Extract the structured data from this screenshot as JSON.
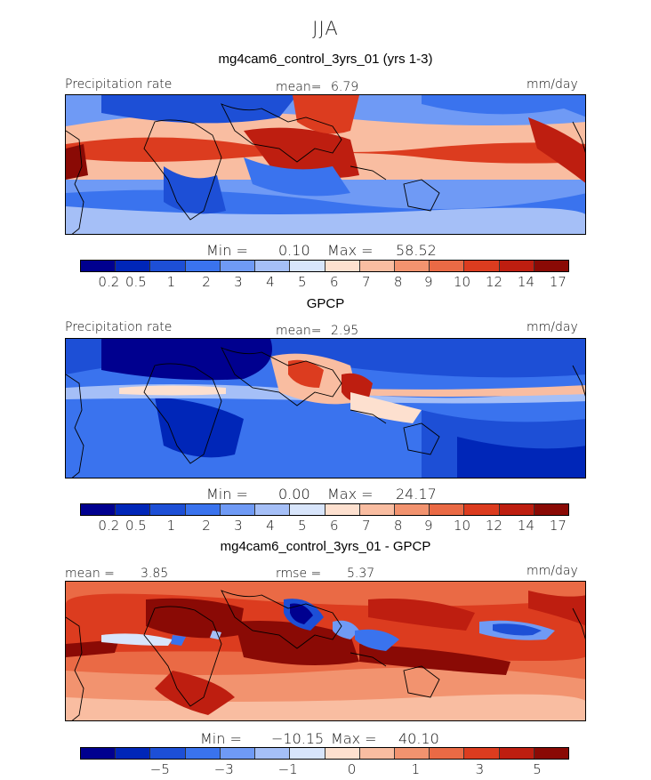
{
  "season": "JJA",
  "palette_abs": [
    "#00008f",
    "#0026b8",
    "#1d4fd6",
    "#3a73ee",
    "#6f9af5",
    "#a5bff7",
    "#d8e5fb",
    "#fde0cf",
    "#f9bda1",
    "#f2936f",
    "#ea6a45",
    "#dc3c1f",
    "#be1e10",
    "#8a0a05"
  ],
  "panels": [
    {
      "title": "mg4cam6_control_3yrs_01 (yrs 1-3)",
      "left_label": "Precipitation rate",
      "mean_label": "mean=",
      "mean_value": "6.79",
      "units": "mm/day",
      "min_label": "Min =",
      "min_value": "0.10",
      "max_label": "Max =",
      "max_value": "58.52",
      "ticks": [
        "0.2",
        "0.5",
        "1",
        "2",
        "3",
        "4",
        "5",
        "6",
        "7",
        "8",
        "9",
        "10",
        "12",
        "14",
        "17"
      ]
    },
    {
      "title": "GPCP",
      "left_label": "Precipitation rate",
      "mean_label": "mean=",
      "mean_value": "2.95",
      "units": "mm/day",
      "min_label": "Min =",
      "min_value": "0.00",
      "max_label": "Max =",
      "max_value": "24.17",
      "ticks": [
        "0.2",
        "0.5",
        "1",
        "2",
        "3",
        "4",
        "5",
        "6",
        "7",
        "8",
        "9",
        "10",
        "12",
        "14",
        "17"
      ]
    },
    {
      "title": "mg4cam6_control_3yrs_01 - GPCP",
      "left_label": "mean =",
      "mean_value": "3.85",
      "rmse_label": "rmse =",
      "rmse_value": "5.37",
      "units": "mm/day",
      "min_label": "Min =",
      "min_value": "−10.15",
      "max_label": "Max =",
      "max_value": "40.10",
      "ticks": [
        "−5",
        "−3",
        "−1",
        "0",
        "1",
        "3",
        "5"
      ]
    }
  ],
  "palette_diff": [
    "#00008f",
    "#0026b8",
    "#1d4fd6",
    "#3a73ee",
    "#6f9af5",
    "#a5bff7",
    "#d8e5fb",
    "#fde0cf",
    "#f9bda1",
    "#f2936f",
    "#ea6a45",
    "#dc3c1f",
    "#be1e10",
    "#8a0a05"
  ]
}
